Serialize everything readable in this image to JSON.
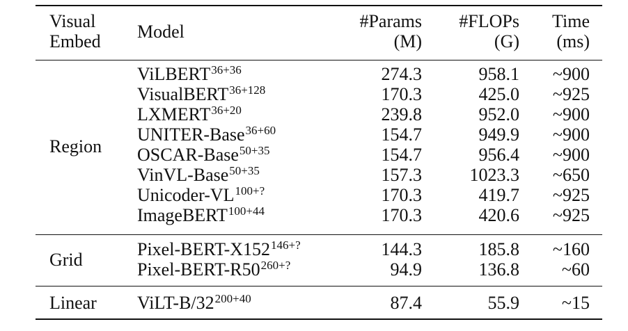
{
  "header": {
    "visual_embed": [
      "Visual",
      "Embed"
    ],
    "model": "Model",
    "params": [
      "#Params",
      "(M)"
    ],
    "flops": [
      "#FLOPs",
      "(G)"
    ],
    "time": [
      "Time",
      "(ms)"
    ]
  },
  "groups": [
    {
      "label": "Region",
      "rows": [
        {
          "model": "ViLBERT",
          "sup": "36+36",
          "params": "274.3",
          "flops": "958.1",
          "time": "~900"
        },
        {
          "model": "VisualBERT",
          "sup": "36+128",
          "params": "170.3",
          "flops": "425.0",
          "time": "~925"
        },
        {
          "model": "LXMERT",
          "sup": "36+20",
          "params": "239.8",
          "flops": "952.0",
          "time": "~900"
        },
        {
          "model": "UNITER-Base",
          "sup": "36+60",
          "params": "154.7",
          "flops": "949.9",
          "time": "~900"
        },
        {
          "model": "OSCAR-Base",
          "sup": "50+35",
          "params": "154.7",
          "flops": "956.4",
          "time": "~900"
        },
        {
          "model": "VinVL-Base",
          "sup": "50+35",
          "params": "157.3",
          "flops": "1023.3",
          "time": "~650"
        },
        {
          "model": "Unicoder-VL",
          "sup": "100+?",
          "params": "170.3",
          "flops": "419.7",
          "time": "~925"
        },
        {
          "model": "ImageBERT",
          "sup": "100+44",
          "params": "170.3",
          "flops": "420.6",
          "time": "~925"
        }
      ]
    },
    {
      "label": "Grid",
      "rows": [
        {
          "model": "Pixel-BERT-X152",
          "sup": "146+?",
          "params": "144.3",
          "flops": "185.8",
          "time": "~160"
        },
        {
          "model": "Pixel-BERT-R50",
          "sup": "260+?",
          "params": "94.9",
          "flops": "136.8",
          "time": "~60"
        }
      ]
    },
    {
      "label": "Linear",
      "rows": [
        {
          "model": "ViLT-B/32",
          "sup": "200+40",
          "params": "87.4",
          "flops": "55.9",
          "time": "~15"
        }
      ]
    }
  ]
}
